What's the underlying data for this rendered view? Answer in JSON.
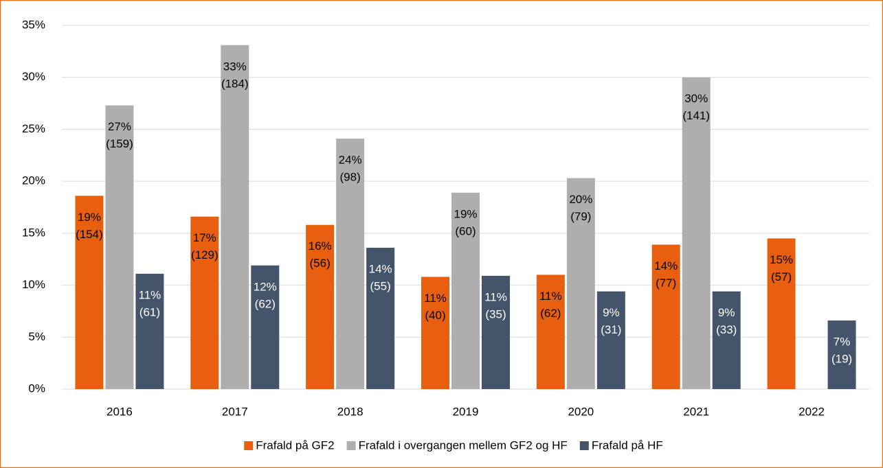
{
  "chart_data": {
    "type": "bar",
    "categories": [
      "2016",
      "2017",
      "2018",
      "2019",
      "2020",
      "2021",
      "2022"
    ],
    "series": [
      {
        "name": "Frafald på GF2",
        "color": "#e8600f",
        "label_color": "#000000",
        "values": [
          18.6,
          16.6,
          15.8,
          10.8,
          11.0,
          13.9,
          14.5
        ],
        "value_labels": [
          [
            "19%",
            "(154)"
          ],
          [
            "17%",
            "(129)"
          ],
          [
            "16%",
            "(56)"
          ],
          [
            "11%",
            "(40)"
          ],
          [
            "11%",
            "(62)"
          ],
          [
            "14%",
            "(77)"
          ],
          [
            "15%",
            "(57)"
          ]
        ]
      },
      {
        "name": "Frafald i overgangen mellem GF2 og HF",
        "color": "#aeaeae",
        "label_color": "#000000",
        "values": [
          27.3,
          33.1,
          24.1,
          18.9,
          20.3,
          30.0,
          null
        ],
        "value_labels": [
          [
            "27%",
            "(159)"
          ],
          [
            "33%",
            "(184)"
          ],
          [
            "24%",
            "(98)"
          ],
          [
            "19%",
            "(60)"
          ],
          [
            "20%",
            "(79)"
          ],
          [
            "30%",
            "(141)"
          ],
          null
        ]
      },
      {
        "name": "Frafald på HF",
        "color": "#44546a",
        "label_color": "#ffffff",
        "values": [
          11.1,
          11.9,
          13.6,
          10.9,
          9.4,
          9.4,
          6.6
        ],
        "value_labels": [
          [
            "11%",
            "(61)"
          ],
          [
            "12%",
            "(62)"
          ],
          [
            "14%",
            "(55)"
          ],
          [
            "11%",
            "(35)"
          ],
          [
            "9%",
            "(31)"
          ],
          [
            "9%",
            "(33)"
          ],
          [
            "7%",
            "(19)"
          ]
        ]
      }
    ],
    "ylim": [
      0,
      35
    ],
    "yticks": [
      {
        "value": 0,
        "label": "0%"
      },
      {
        "value": 5,
        "label": "5%"
      },
      {
        "value": 10,
        "label": "10%"
      },
      {
        "value": 15,
        "label": "15%"
      },
      {
        "value": 20,
        "label": "20%"
      },
      {
        "value": 25,
        "label": "25%"
      },
      {
        "value": 30,
        "label": "30%"
      },
      {
        "value": 35,
        "label": "35%"
      }
    ],
    "grid": true,
    "legend": "bottom"
  }
}
